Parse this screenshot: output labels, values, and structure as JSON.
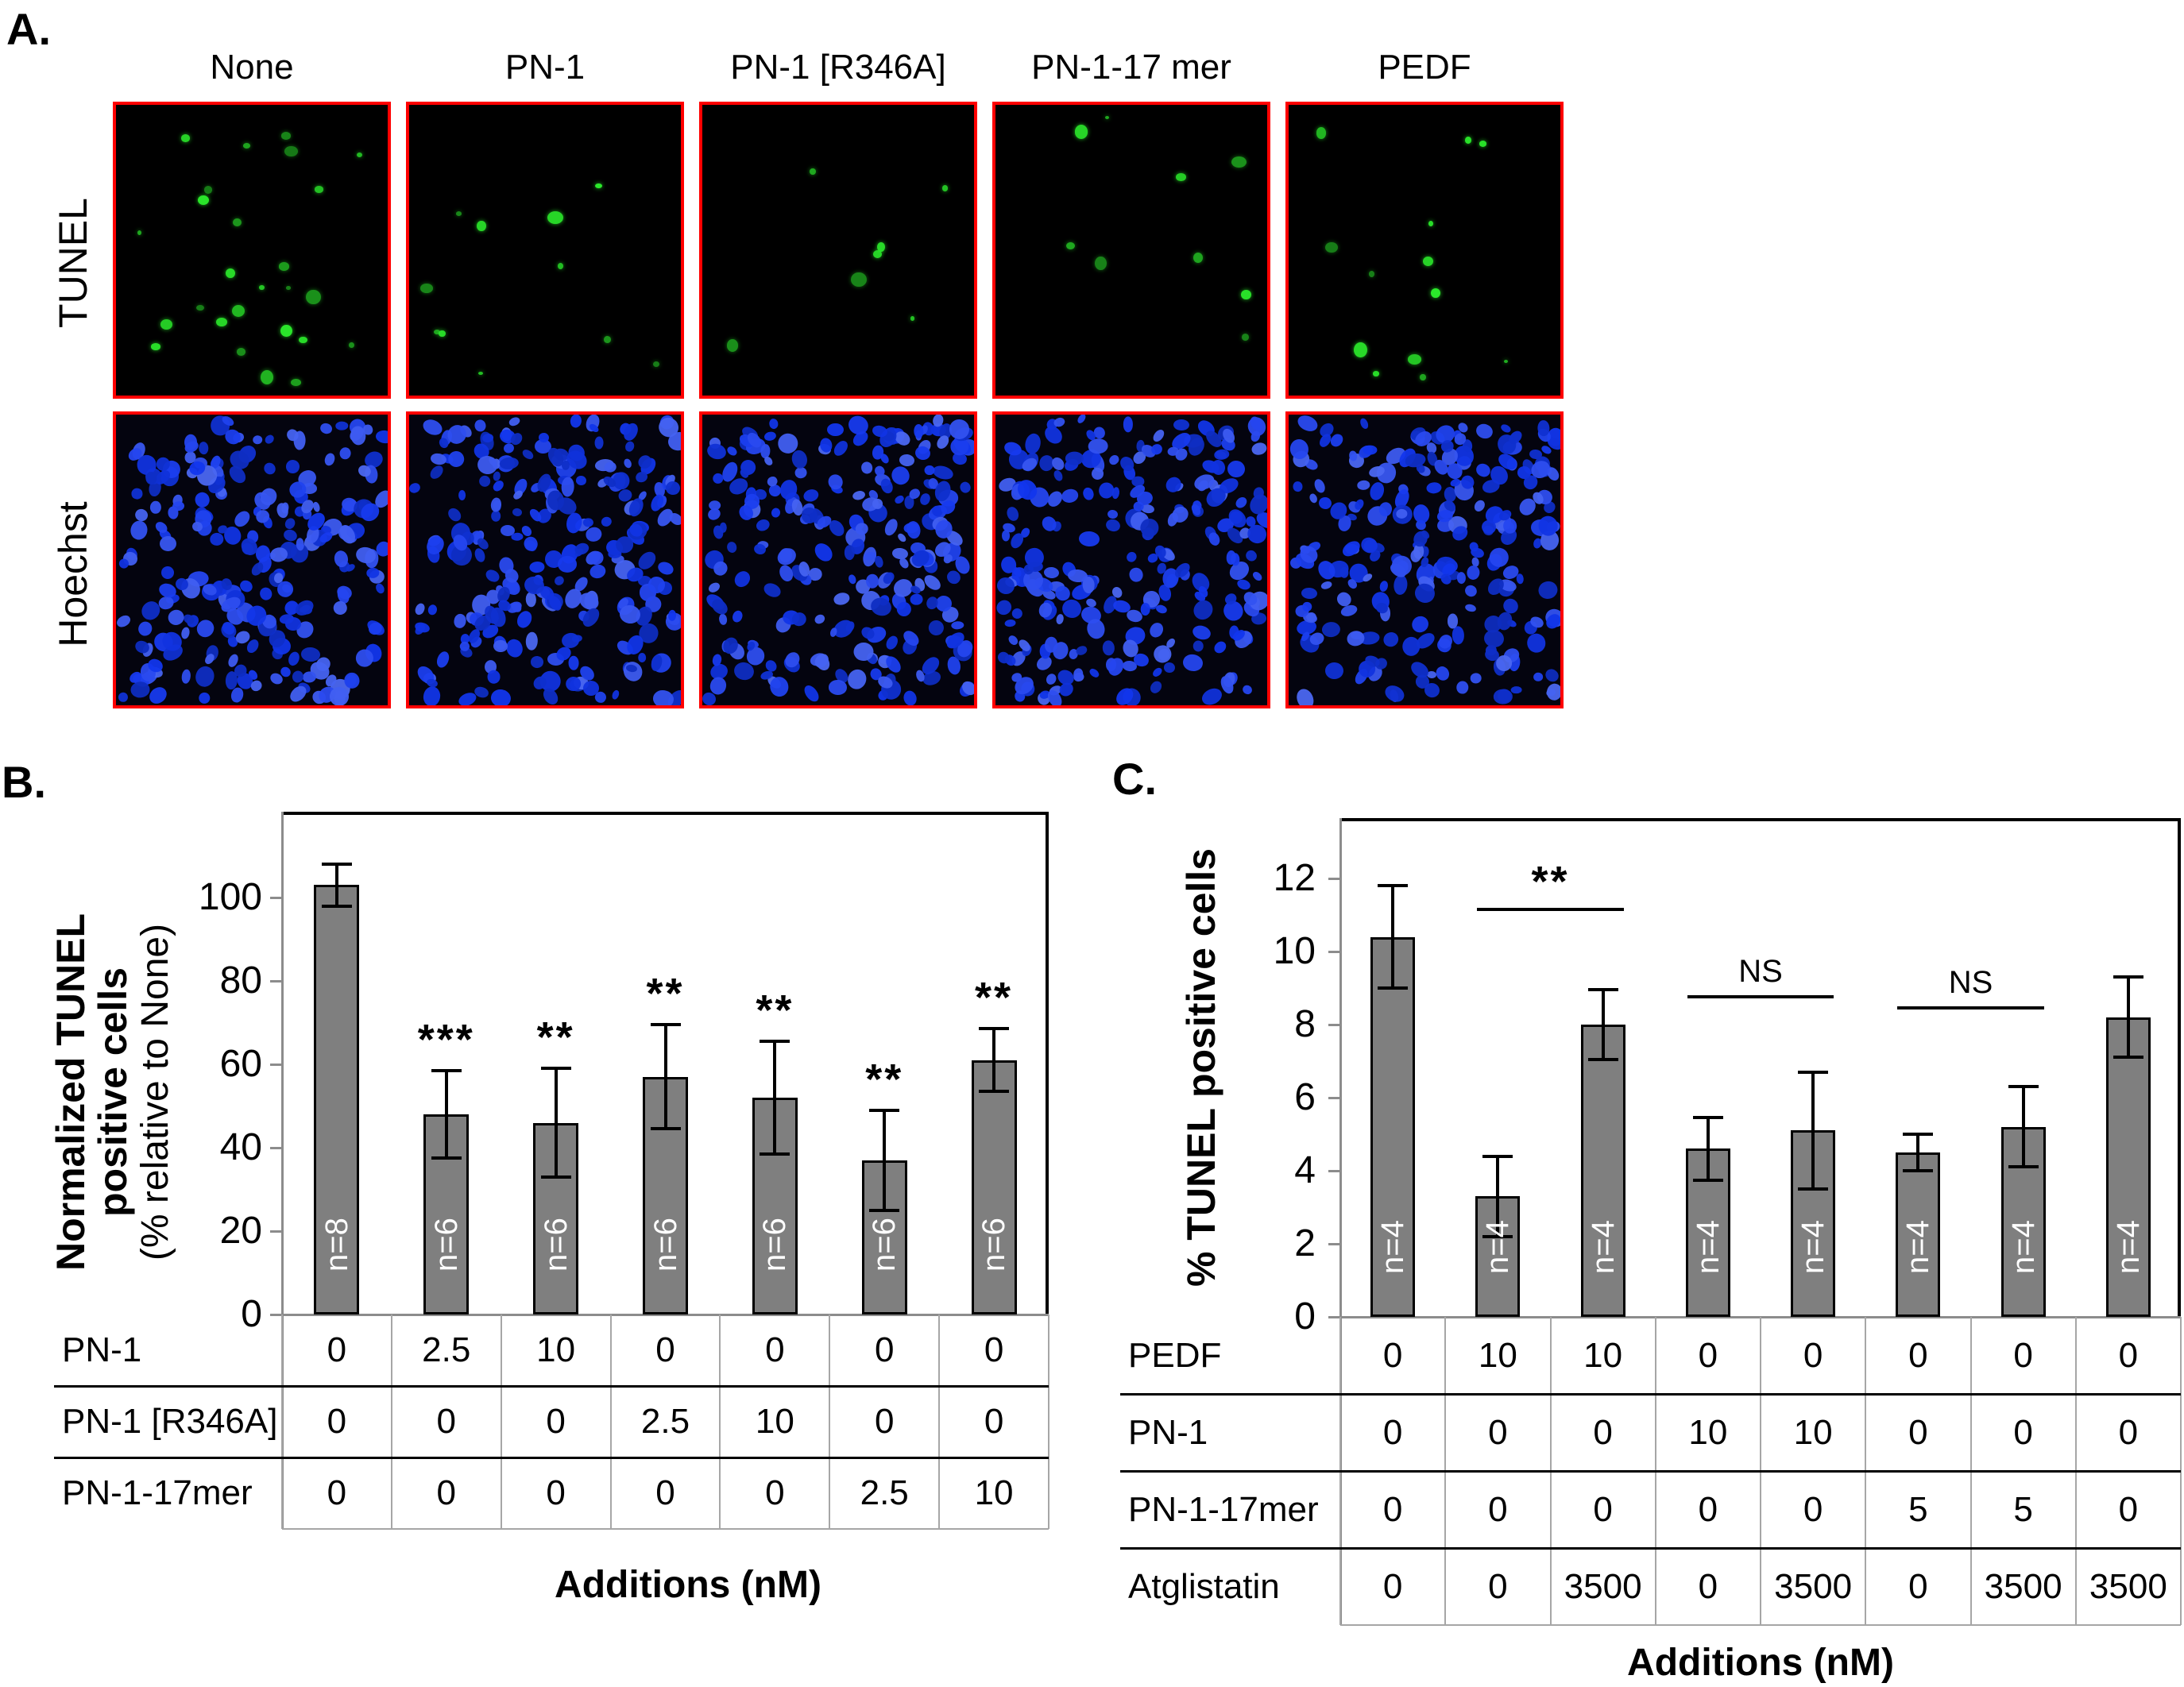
{
  "figure": {
    "background": "#ffffff"
  },
  "panel_a": {
    "label": "A.",
    "column_labels": [
      "None",
      "PN-1",
      "PN-1 [R346A]",
      "PN-1-17 mer",
      "PEDF"
    ],
    "row_labels": [
      "TUNEL",
      "Hoechst"
    ],
    "tunel_positive_dot_counts": [
      26,
      11,
      7,
      9,
      13
    ],
    "hoechst_nuclei_per_image": 230,
    "colors": {
      "image_border": "#ff0000",
      "tunel_background": "#000000",
      "tunel_dot": "#2be82b",
      "hoechst_background": "#04040f",
      "hoechst_nucleus": "#2433e8"
    }
  },
  "chart_data": [
    {
      "panel_label": "B.",
      "type": "bar",
      "title": "",
      "ylabel": "Normalized TUNEL positive cells (% relative to None)",
      "ylabel_lines": [
        "Normalized TUNEL",
        "positive cells",
        "(% relative to None)"
      ],
      "xlabel": "Additions (nM)",
      "ylim": [
        0,
        120
      ],
      "yticks": [
        0,
        20,
        40,
        60,
        80,
        100
      ],
      "grid": false,
      "legend_position": "none",
      "bar_color": "#7f7f7f",
      "categories": [
        "None",
        "PN-1 2.5 nM",
        "PN-1 10 nM",
        "PN-1 [R346A] 2.5 nM",
        "PN-1 [R346A] 10 nM",
        "PN-1-17mer 2.5 nM",
        "PN-1-17mer 10 nM"
      ],
      "values": [
        103,
        48,
        46,
        57,
        52,
        37,
        61
      ],
      "errors": [
        5,
        10.5,
        13,
        12.5,
        13.5,
        12,
        7.5
      ],
      "n_labels": [
        "n=8",
        "n=6",
        "n=6",
        "n=6",
        "n=6",
        "n=6",
        "n=6"
      ],
      "significance": [
        "",
        "***",
        "**",
        "**",
        "**",
        "**",
        "**"
      ],
      "conditions_table": {
        "rows": [
          {
            "label": "PN-1",
            "values": [
              "0",
              "2.5",
              "10",
              "0",
              "0",
              "0",
              "0"
            ]
          },
          {
            "label": "PN-1 [R346A]",
            "values": [
              "0",
              "0",
              "0",
              "2.5",
              "10",
              "0",
              "0"
            ]
          },
          {
            "label": "PN-1-17mer",
            "values": [
              "0",
              "0",
              "0",
              "0",
              "0",
              "2.5",
              "10"
            ]
          }
        ]
      }
    },
    {
      "panel_label": "C.",
      "type": "bar",
      "title": "",
      "ylabel": "% TUNEL positive cells",
      "xlabel": "Additions (nM)",
      "ylim": [
        0,
        13.6
      ],
      "yticks": [
        0,
        2,
        4,
        6,
        8,
        10,
        12
      ],
      "grid": false,
      "legend_position": "none",
      "bar_color": "#7f7f7f",
      "categories": [
        "Control",
        "PEDF 10 nM",
        "PEDF 10 nM + Atglistatin 3500 nM",
        "PN-1 10 nM",
        "PN-1 10 nM + Atglistatin 3500 nM",
        "PN-1-17mer 5 nM",
        "PN-1-17mer 5 nM + Atglistatin 3500 nM",
        "Atglistatin 3500 nM"
      ],
      "values": [
        10.4,
        3.3,
        8.0,
        4.6,
        5.1,
        4.5,
        5.2,
        8.2
      ],
      "errors": [
        1.4,
        1.1,
        0.95,
        0.85,
        1.6,
        0.5,
        1.1,
        1.1
      ],
      "n_labels": [
        "n=4",
        "n=4",
        "n=4",
        "n=4",
        "n=4",
        "n=4",
        "n=4",
        "n=4"
      ],
      "significance_brackets": [
        {
          "label": "**",
          "from": 1,
          "to": 2,
          "y": 11.2
        },
        {
          "label": "NS",
          "from": 3,
          "to": 4,
          "y": 8.8
        },
        {
          "label": "NS",
          "from": 5,
          "to": 6,
          "y": 8.5
        }
      ],
      "conditions_table": {
        "rows": [
          {
            "label": "PEDF",
            "values": [
              "0",
              "10",
              "10",
              "0",
              "0",
              "0",
              "0",
              "0"
            ]
          },
          {
            "label": "PN-1",
            "values": [
              "0",
              "0",
              "0",
              "10",
              "10",
              "0",
              "0",
              "0"
            ]
          },
          {
            "label": "PN-1-17mer",
            "values": [
              "0",
              "0",
              "0",
              "0",
              "0",
              "5",
              "5",
              "0"
            ]
          },
          {
            "label": "Atglistatin",
            "values": [
              "0",
              "0",
              "3500",
              "0",
              "3500",
              "0",
              "3500",
              "3500"
            ]
          }
        ]
      }
    }
  ]
}
